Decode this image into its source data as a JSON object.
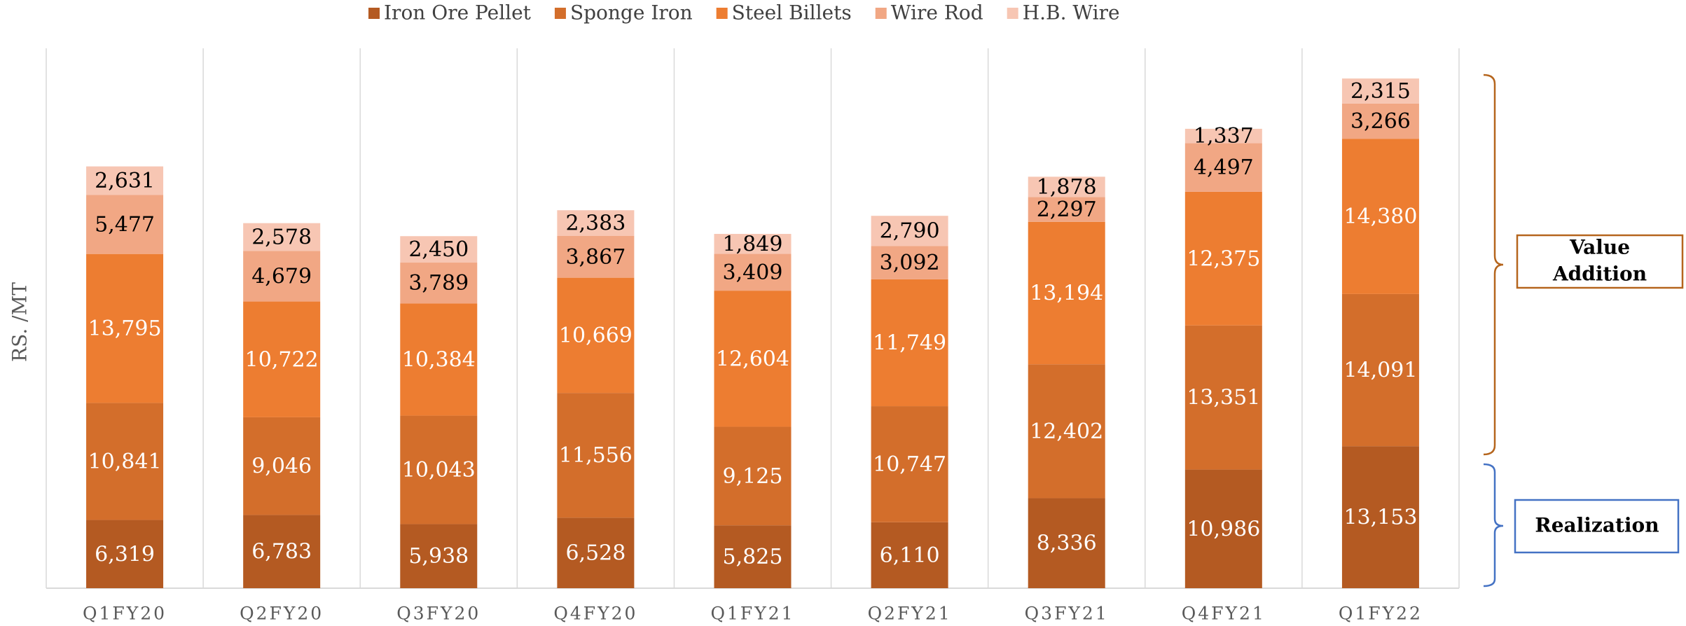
{
  "chart_data": {
    "type": "stacked_bar",
    "y_label": "RS. /MT",
    "categories": [
      "Q1FY20",
      "Q2FY20",
      "Q3FY20",
      "Q4FY20",
      "Q1FY21",
      "Q2FY21",
      "Q3FY21",
      "Q4FY21",
      "Q1FY22"
    ],
    "series": [
      {
        "name": "Iron Ore Pellet",
        "color": "#b45a22",
        "values": [
          6319,
          6783,
          5938,
          6528,
          5825,
          6110,
          8336,
          10986,
          13153
        ],
        "value_labels": [
          "6,319",
          "6,783",
          "5,938",
          "6,528",
          "5,825",
          "6,110",
          "8,336",
          "10,986",
          "13,153"
        ]
      },
      {
        "name": "Sponge Iron",
        "color": "#d36e2b",
        "values": [
          10841,
          9046,
          10043,
          11556,
          9125,
          10747,
          12402,
          13351,
          14091
        ],
        "value_labels": [
          "10,841",
          "9,046",
          "10,043",
          "11,556",
          "9,125",
          "10,747",
          "12,402",
          "13,351",
          "14,091"
        ]
      },
      {
        "name": "Steel Billets",
        "color": "#ed7d31",
        "values": [
          13795,
          10722,
          10384,
          10669,
          12604,
          11749,
          13194,
          12375,
          14380
        ],
        "value_labels": [
          "13,795",
          "10,722",
          "10,384",
          "10,669",
          "12,604",
          "11,749",
          "13,194",
          "12,375",
          "14,380"
        ]
      },
      {
        "name": "Wire Rod",
        "color": "#f1a784",
        "values": [
          5477,
          4679,
          3789,
          3867,
          3409,
          3092,
          2297,
          4497,
          3266
        ],
        "value_labels": [
          "5,477",
          "4,679",
          "3,789",
          "3,867",
          "3,409",
          "3,092",
          "2,297",
          "4,497",
          "3,266"
        ]
      },
      {
        "name": "H.B. Wire",
        "color": "#f7c6b3",
        "values": [
          2631,
          2578,
          2450,
          2383,
          1849,
          2790,
          1878,
          1337,
          2315
        ],
        "value_labels": [
          "2,631",
          "2,578",
          "2,450",
          "2,383",
          "1,849",
          "2,790",
          "1,878",
          "1,337",
          "2,315"
        ]
      }
    ],
    "ylim": [
      0,
      50000
    ],
    "annotations": [
      "Value Addition",
      "Realization"
    ]
  }
}
